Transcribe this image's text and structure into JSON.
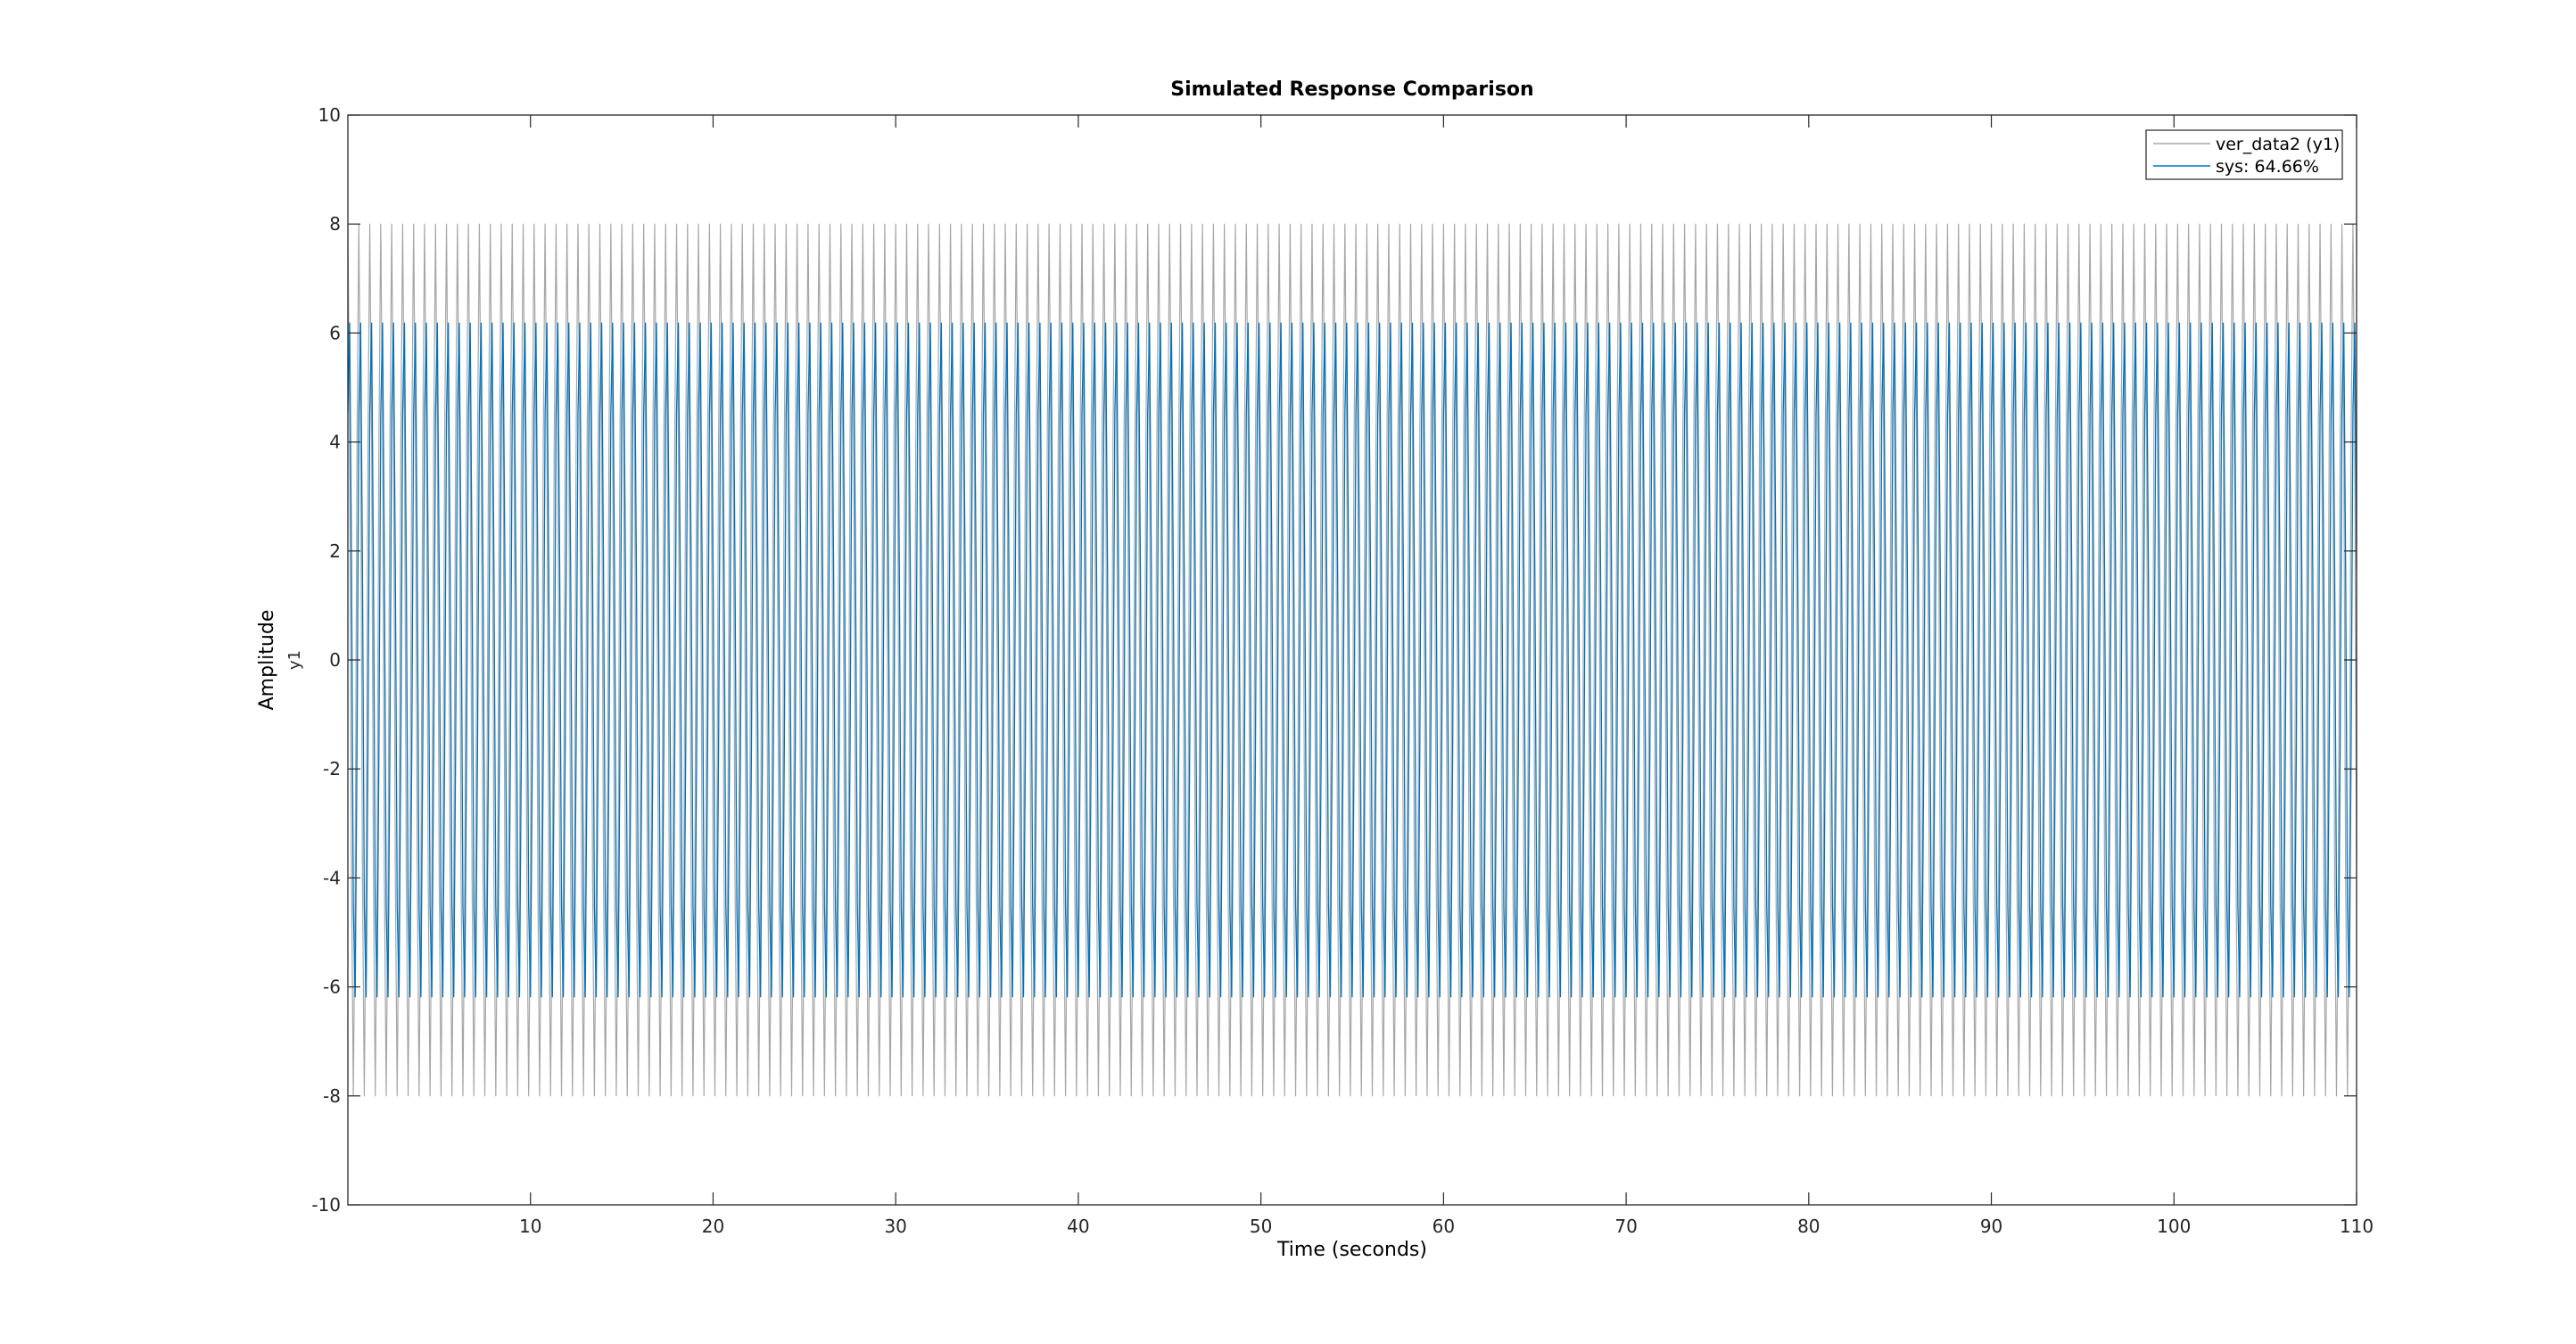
{
  "chart_data": {
    "type": "line",
    "title": "Simulated Response Comparison",
    "xlabel": "Time (seconds)",
    "ylabel": "Amplitude",
    "ylabel_channel": "y1",
    "xlim": [
      0,
      110
    ],
    "ylim": [
      -10,
      10
    ],
    "x_ticks": [
      10,
      20,
      30,
      40,
      50,
      60,
      70,
      80,
      90,
      100,
      110
    ],
    "y_ticks": [
      -10,
      -8,
      -6,
      -4,
      -2,
      0,
      2,
      4,
      6,
      8,
      10
    ],
    "grid": false,
    "legend_position": "top-right",
    "sample_time": 0.1,
    "series": [
      {
        "name": "ver_data2 (y1)",
        "color": "#a6a6a6",
        "amplitude": 8.0,
        "period": 0.6,
        "phase_deg": 90,
        "x_start": 0,
        "x_end": 110
      },
      {
        "name": "sys: 64.66%",
        "color": "#0072bd",
        "amplitude": 6.4,
        "period": 0.6,
        "phase_deg": 45,
        "x_start": 0,
        "x_end": 110
      }
    ]
  }
}
